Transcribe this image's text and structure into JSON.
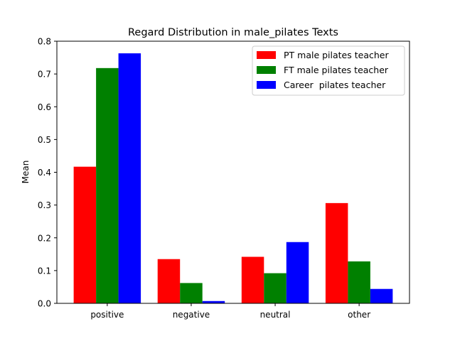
{
  "chart_data": {
    "type": "bar",
    "title": "Regard Distribution in male_pilates Texts",
    "xlabel": "",
    "ylabel": "Mean",
    "categories": [
      "positive",
      "negative",
      "neutral",
      "other"
    ],
    "ylim": [
      0,
      0.8
    ],
    "yticks": [
      "0.0",
      "0.1",
      "0.2",
      "0.3",
      "0.4",
      "0.5",
      "0.6",
      "0.7",
      "0.8"
    ],
    "grid": false,
    "legend_position": "top-right",
    "series": [
      {
        "name": "PT male pilates teacher",
        "color": "#ff0000",
        "values": [
          0.417,
          0.135,
          0.142,
          0.306
        ]
      },
      {
        "name": "FT male pilates teacher",
        "color": "#008000",
        "values": [
          0.718,
          0.062,
          0.092,
          0.128
        ]
      },
      {
        "name": "Career  pilates teacher",
        "color": "#0000ff",
        "values": [
          0.763,
          0.007,
          0.187,
          0.044
        ]
      }
    ]
  }
}
